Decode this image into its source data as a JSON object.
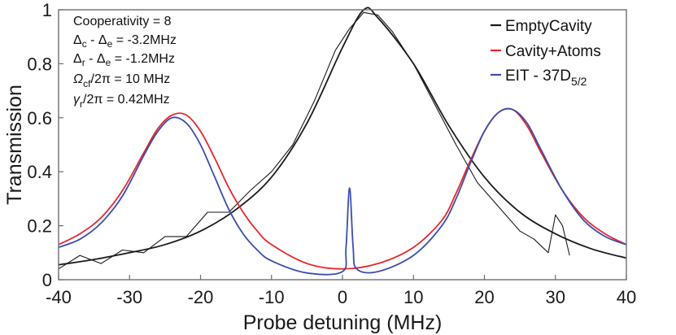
{
  "chart_data": {
    "type": "line",
    "title": "",
    "xlabel": "Probe detuning (MHz)",
    "ylabel": "Transmission",
    "xlim": [
      -40,
      40
    ],
    "ylim": [
      0,
      1
    ],
    "xticks": [
      -40,
      -30,
      -20,
      -10,
      0,
      10,
      20,
      30,
      40
    ],
    "yticks": [
      0,
      0.2,
      0.4,
      0.6,
      0.8,
      1
    ],
    "xtick_labels": [
      "-40",
      "-30",
      "-20",
      "-10",
      "0",
      "10",
      "20",
      "30",
      "40"
    ],
    "ytick_labels": [
      "0",
      "0.2",
      "0.4",
      "0.6",
      "0.8",
      "1"
    ],
    "grid": false,
    "legend_position": "top-right",
    "annotations": {
      "cooperativity": "Cooperativity = 8",
      "delta_ce": "Δc - Δe = -3.2MHz",
      "delta_re": "Δr - Δe = -1.2MHz",
      "omega_cf": "Ωcf/2π =  10 MHz",
      "gamma_r": "γr/2π  = 0.42MHz"
    },
    "series": [
      {
        "name": "Empty Cavity",
        "color": "#1a1a1a",
        "style": "fit",
        "x": [
          -40,
          -35,
          -30,
          -25,
          -20,
          -15,
          -10,
          -5,
          0,
          3,
          5,
          10,
          15,
          20,
          25,
          30,
          35,
          40
        ],
        "y": [
          0.055,
          0.075,
          0.1,
          0.13,
          0.18,
          0.26,
          0.38,
          0.58,
          0.86,
          1.0,
          0.97,
          0.8,
          0.57,
          0.38,
          0.25,
          0.17,
          0.115,
          0.08
        ]
      },
      {
        "name": "Empty Cavity (data)",
        "color": "#1a1a1a",
        "style": "data",
        "x": [
          -40,
          -37,
          -34,
          -31,
          -28,
          -25,
          -22,
          -19,
          -16,
          -13,
          -10,
          -7,
          -4,
          -1,
          1,
          3,
          5,
          7,
          10,
          13,
          16,
          19,
          22,
          25,
          27,
          29,
          30,
          31,
          32
        ],
        "y": [
          0.04,
          0.09,
          0.06,
          0.11,
          0.1,
          0.16,
          0.16,
          0.25,
          0.25,
          0.33,
          0.4,
          0.5,
          0.66,
          0.85,
          0.93,
          0.99,
          0.98,
          0.92,
          0.8,
          0.65,
          0.5,
          0.36,
          0.27,
          0.18,
          0.15,
          0.1,
          0.24,
          0.2,
          0.09
        ]
      },
      {
        "name": "Cavity+Atoms",
        "color": "#e8262d",
        "style": "fit",
        "x": [
          -40,
          -37,
          -34,
          -31,
          -28,
          -26,
          -24,
          -22,
          -20,
          -18,
          -16,
          -14,
          -12,
          -10,
          -5,
          0,
          5,
          10,
          14,
          16,
          18,
          20,
          22,
          24,
          26,
          28,
          31,
          34,
          37,
          40
        ],
        "y": [
          0.13,
          0.17,
          0.23,
          0.33,
          0.47,
          0.56,
          0.61,
          0.61,
          0.55,
          0.45,
          0.34,
          0.25,
          0.18,
          0.13,
          0.06,
          0.04,
          0.06,
          0.12,
          0.22,
          0.32,
          0.44,
          0.55,
          0.62,
          0.63,
          0.57,
          0.47,
          0.33,
          0.23,
          0.17,
          0.13
        ]
      },
      {
        "name": "EIT - 37D5/2",
        "color": "#3a4db0",
        "style": "fit",
        "x": [
          -40,
          -37,
          -34,
          -31,
          -28,
          -26,
          -24,
          -22,
          -20,
          -18,
          -16,
          -14,
          -12,
          -10,
          -5,
          0,
          0.5,
          1,
          1.5,
          2,
          5,
          10,
          14,
          16,
          18,
          20,
          22,
          24,
          26,
          28,
          31,
          34,
          37,
          40
        ],
        "y": [
          0.12,
          0.15,
          0.21,
          0.31,
          0.46,
          0.55,
          0.6,
          0.58,
          0.5,
          0.38,
          0.26,
          0.17,
          0.11,
          0.07,
          0.025,
          0.03,
          0.12,
          0.34,
          0.12,
          0.04,
          0.03,
          0.09,
          0.2,
          0.3,
          0.43,
          0.55,
          0.62,
          0.63,
          0.58,
          0.48,
          0.33,
          0.22,
          0.16,
          0.13
        ]
      }
    ],
    "legend": [
      {
        "label": "EmptyCavity",
        "color": "#1a1a1a"
      },
      {
        "label": "Cavity+Atoms",
        "color": "#e8262d"
      },
      {
        "label": "EIT - 37D5/2",
        "color": "#3a4db0"
      }
    ]
  },
  "legend_labels": {
    "empty": "EmptyCavity",
    "atoms": "Cavity+Atoms",
    "eit_main": "EIT - 37D",
    "eit_sub": "5/2"
  },
  "ann_parts": {
    "coop": "Cooperativity = 8",
    "l2_sym": "Δ",
    "l2_s1": "c",
    "l2_mid": " - Δ",
    "l2_s2": "e",
    "l2_val": " = -3.2MHz",
    "l3_sym": "Δ",
    "l3_s1": "r",
    "l3_mid": " - Δ",
    "l3_s2": "e",
    "l3_val": " = -1.2MHz",
    "l4_sym": "Ω",
    "l4_s1": "cf",
    "l4_val": "/2π =  10 MHz",
    "l5_sym": "γ",
    "l5_s1": "r",
    "l5_val": "/2π  = 0.42MHz"
  }
}
